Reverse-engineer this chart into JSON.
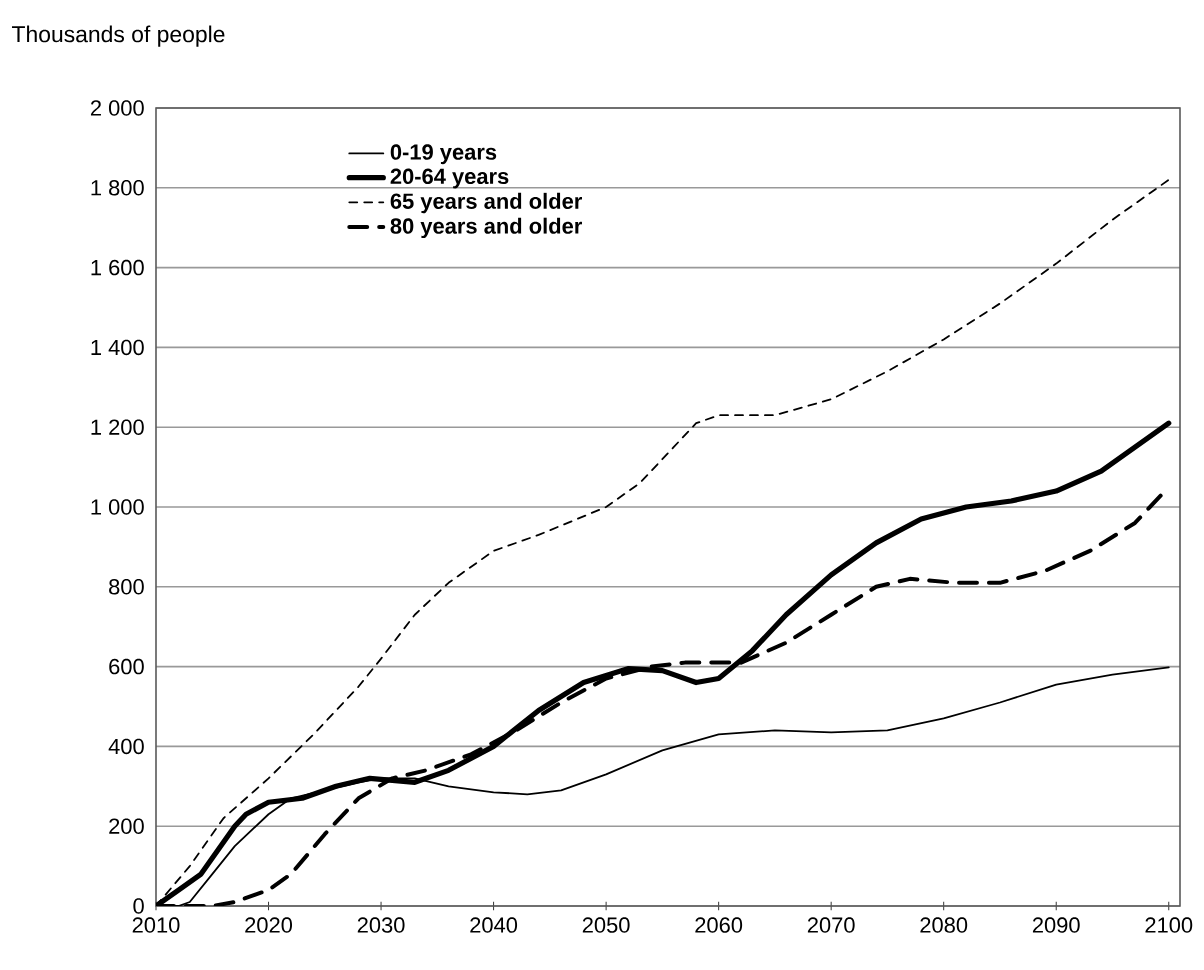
{
  "chart_data": {
    "type": "line",
    "ylabel": "Thousands of people",
    "grid": "y",
    "legend": "top left",
    "xlim": [
      2010,
      2101
    ],
    "ylim": [
      0,
      2000
    ],
    "xticks": [
      2010,
      2020,
      2030,
      2040,
      2050,
      2060,
      2070,
      2080,
      2090,
      2100
    ],
    "yticks": [
      0,
      200,
      400,
      600,
      800,
      {
        "value": 1000,
        "label": "1 000"
      },
      {
        "value": 1200,
        "label": "1 200"
      },
      {
        "value": 1400,
        "label": "1 400"
      },
      {
        "value": 1600,
        "label": "1 600"
      },
      {
        "value": 1800,
        "label": "1 800"
      },
      {
        "value": 2000,
        "label": "2 000"
      }
    ],
    "series": [
      {
        "name": "0-19 years",
        "color": "#000000",
        "line_style": "solid",
        "x": [
          2010,
          2012,
          2013,
          2015,
          2017,
          2020,
          2022,
          2025,
          2028,
          2030,
          2033,
          2036,
          2040,
          2043,
          2046,
          2050,
          2055,
          2060,
          2065,
          2070,
          2075,
          2080,
          2085,
          2090,
          2095,
          2100
        ],
        "values": [
          0,
          0,
          10,
          80,
          150,
          230,
          270,
          290,
          310,
          320,
          320,
          300,
          285,
          280,
          290,
          330,
          390,
          430,
          440,
          435,
          440,
          470,
          510,
          555,
          580,
          598
        ]
      },
      {
        "name": "20-64 years",
        "color": "#000000",
        "line_style": "solid",
        "x": [
          2010,
          2012,
          2014,
          2017,
          2018,
          2020,
          2023,
          2026,
          2029,
          2031,
          2033,
          2036,
          2040,
          2044,
          2048,
          2052,
          2055,
          2058,
          2060,
          2063,
          2066,
          2070,
          2074,
          2078,
          2082,
          2086,
          2090,
          2094,
          2097,
          2100
        ],
        "values": [
          0,
          40,
          80,
          200,
          230,
          260,
          270,
          300,
          320,
          315,
          310,
          340,
          400,
          490,
          560,
          595,
          590,
          560,
          570,
          640,
          730,
          830,
          910,
          970,
          1000,
          1015,
          1040,
          1090,
          1150,
          1210
        ]
      },
      {
        "name": "65 years and older",
        "color": "#000000",
        "line_style": "dashed",
        "x": [
          2010,
          2013,
          2016,
          2020,
          2024,
          2028,
          2030,
          2033,
          2036,
          2040,
          2044,
          2050,
          2053,
          2056,
          2058,
          2060,
          2065,
          2070,
          2075,
          2080,
          2085,
          2090,
          2095,
          2100
        ],
        "values": [
          0,
          100,
          220,
          320,
          430,
          550,
          620,
          730,
          810,
          890,
          930,
          1000,
          1060,
          1150,
          1210,
          1230,
          1230,
          1270,
          1340,
          1420,
          1510,
          1610,
          1720,
          1820
        ]
      },
      {
        "name": "80 years and older",
        "color": "#000000",
        "line_style": "dashed",
        "x": [
          2010,
          2015,
          2017,
          2020,
          2022,
          2025,
          2028,
          2031,
          2034,
          2038,
          2042,
          2046,
          2050,
          2054,
          2057,
          2062,
          2066,
          2070,
          2074,
          2077,
          2081,
          2085,
          2089,
          2093,
          2097,
          2100
        ],
        "values": [
          0,
          0,
          10,
          40,
          80,
          180,
          270,
          320,
          340,
          380,
          440,
          510,
          570,
          600,
          610,
          610,
          660,
          730,
          800,
          820,
          810,
          810,
          840,
          890,
          960,
          1050
        ]
      }
    ]
  }
}
